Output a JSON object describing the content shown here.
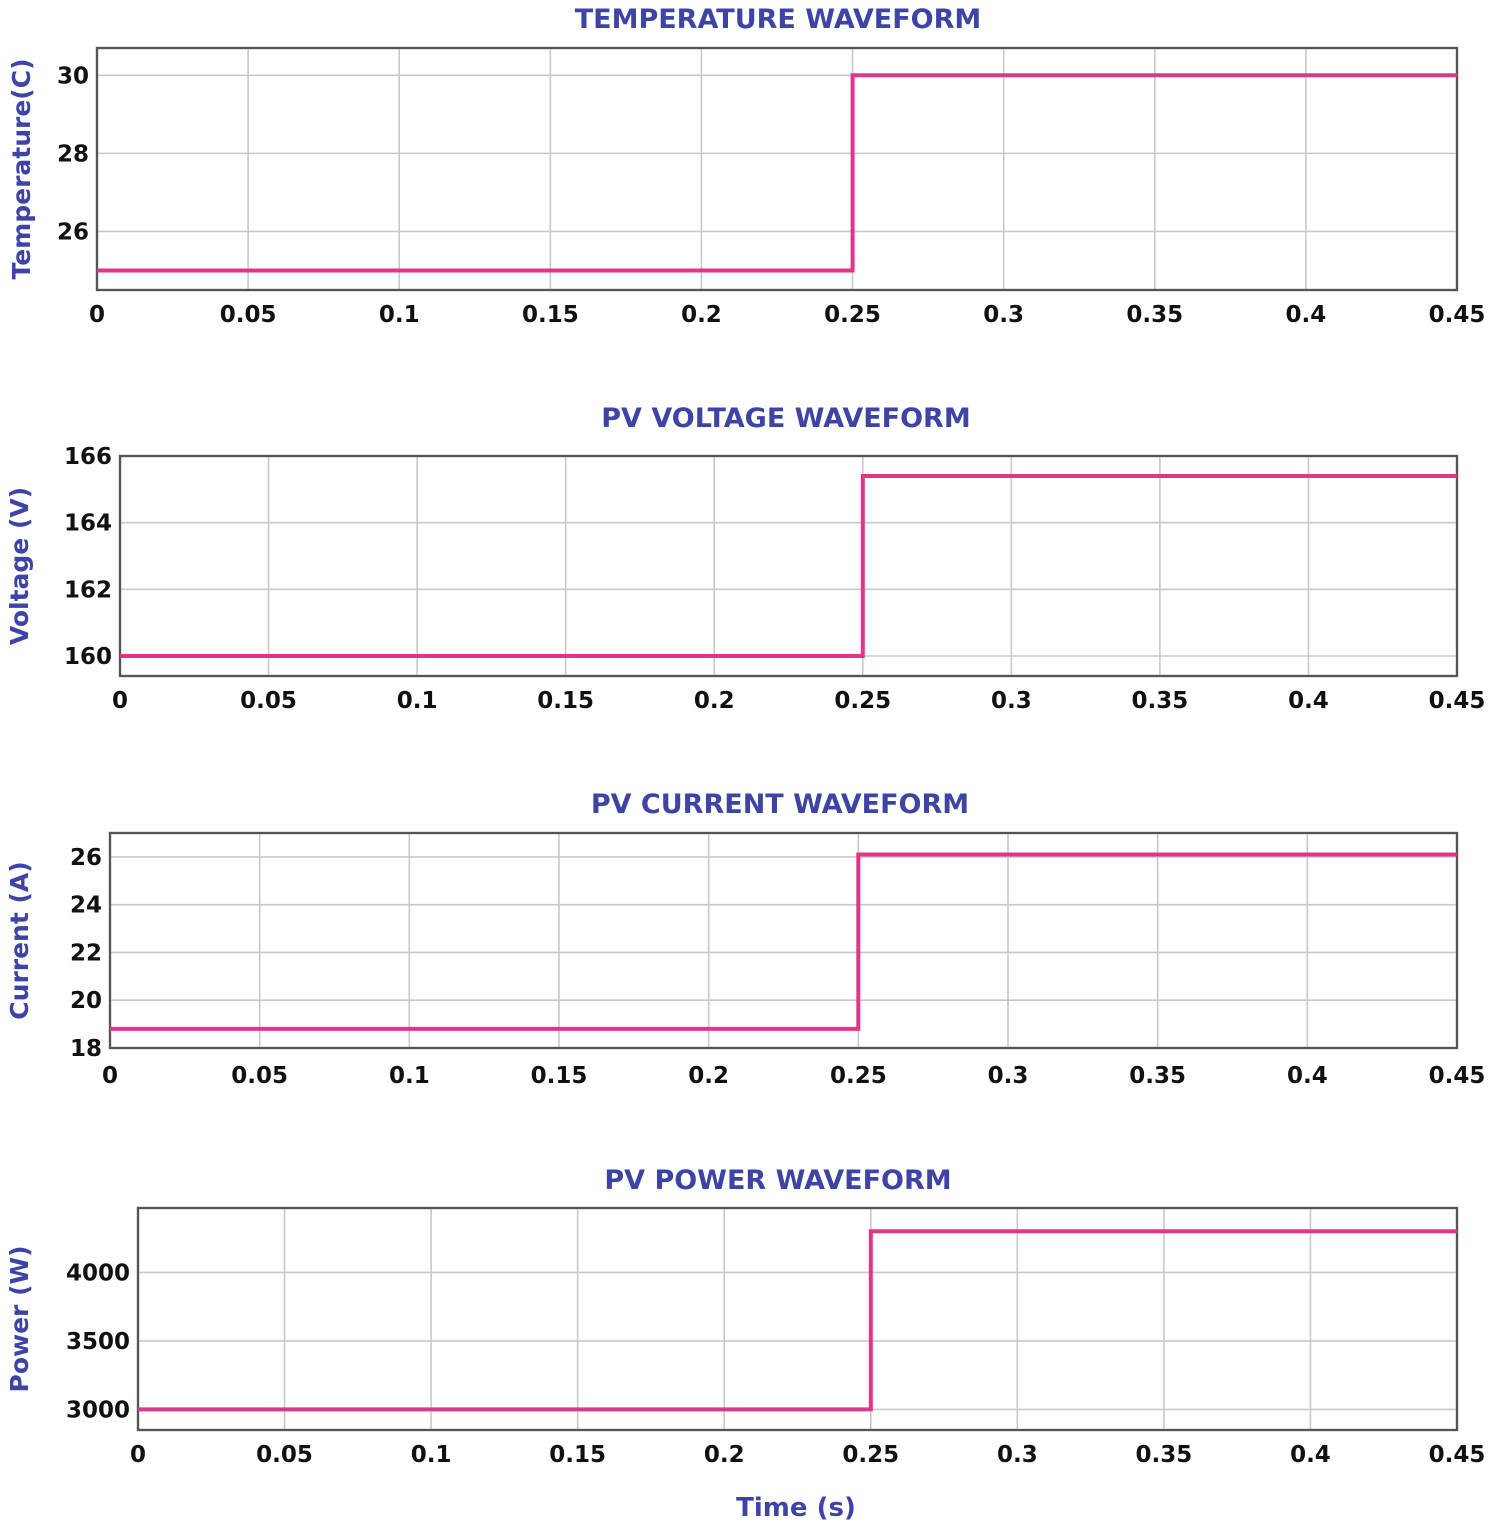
{
  "colors": {
    "series": "#e0368a",
    "title": "#3d44a6",
    "grid": "#c8c8c8"
  },
  "figure": {
    "xlabel": "Time (s)"
  },
  "chart_data": [
    {
      "type": "line",
      "title": "TEMPERATURE WAVEFORM",
      "ylabel": "Temperature(C)",
      "xlim": [
        0,
        0.45
      ],
      "ylim": [
        24.5,
        30.7
      ],
      "xticks": [
        0,
        0.05,
        0.1,
        0.15,
        0.2,
        0.25,
        0.3,
        0.35,
        0.4,
        0.45
      ],
      "xtick_labels": [
        "0",
        "0.05",
        "0.1",
        "0.15",
        "0.2",
        "0.25",
        "0.3",
        "0.35",
        "0.4",
        "0.45"
      ],
      "yticks": [
        26,
        28,
        30
      ],
      "ytick_labels": [
        "26",
        "28",
        "30"
      ],
      "grid": true,
      "series": [
        {
          "x": [
            0,
            0.25,
            0.25,
            0.45
          ],
          "y": [
            25,
            25,
            30,
            30
          ]
        }
      ]
    },
    {
      "type": "line",
      "title": "PV VOLTAGE WAVEFORM",
      "ylabel": "Voltage (V)",
      "xlim": [
        0,
        0.45
      ],
      "ylim": [
        159.4,
        166
      ],
      "xticks": [
        0,
        0.05,
        0.1,
        0.15,
        0.2,
        0.25,
        0.3,
        0.35,
        0.4,
        0.45
      ],
      "xtick_labels": [
        "0",
        "0.05",
        "0.1",
        "0.15",
        "0.2",
        "0.25",
        "0.3",
        "0.35",
        "0.4",
        "0.45"
      ],
      "yticks": [
        160,
        162,
        164,
        166
      ],
      "ytick_labels": [
        "160",
        "162",
        "164",
        "166"
      ],
      "grid": true,
      "series": [
        {
          "x": [
            0,
            0.25,
            0.25,
            0.45
          ],
          "y": [
            160,
            160,
            165.4,
            165.4
          ]
        }
      ]
    },
    {
      "type": "line",
      "title": "PV CURRENT WAVEFORM",
      "ylabel": "Current (A)",
      "xlim": [
        0,
        0.45
      ],
      "ylim": [
        18,
        27
      ],
      "xticks": [
        0,
        0.05,
        0.1,
        0.15,
        0.2,
        0.25,
        0.3,
        0.35,
        0.4,
        0.45
      ],
      "xtick_labels": [
        "0",
        "0.05",
        "0.1",
        "0.15",
        "0.2",
        "0.25",
        "0.3",
        "0.35",
        "0.4",
        "0.45"
      ],
      "yticks": [
        18,
        20,
        22,
        24,
        26
      ],
      "ytick_labels": [
        "18",
        "20",
        "22",
        "24",
        "26"
      ],
      "grid": true,
      "series": [
        {
          "x": [
            0,
            0.25,
            0.25,
            0.45
          ],
          "y": [
            18.8,
            18.8,
            26.1,
            26.1
          ]
        }
      ]
    },
    {
      "type": "line",
      "title": "PV POWER WAVEFORM",
      "ylabel": "Power (W)",
      "xlim": [
        0,
        0.45
      ],
      "ylim": [
        2850,
        4470
      ],
      "xticks": [
        0,
        0.05,
        0.1,
        0.15,
        0.2,
        0.25,
        0.3,
        0.35,
        0.4,
        0.45
      ],
      "xtick_labels": [
        "0",
        "0.05",
        "0.1",
        "0.15",
        "0.2",
        "0.25",
        "0.3",
        "0.35",
        "0.4",
        "0.45"
      ],
      "yticks": [
        3000,
        3500,
        4000
      ],
      "ytick_labels": [
        "3000",
        "3500",
        "4000"
      ],
      "grid": true,
      "series": [
        {
          "x": [
            0,
            0.25,
            0.25,
            0.45
          ],
          "y": [
            3000,
            3000,
            4300,
            4300
          ]
        }
      ]
    }
  ]
}
